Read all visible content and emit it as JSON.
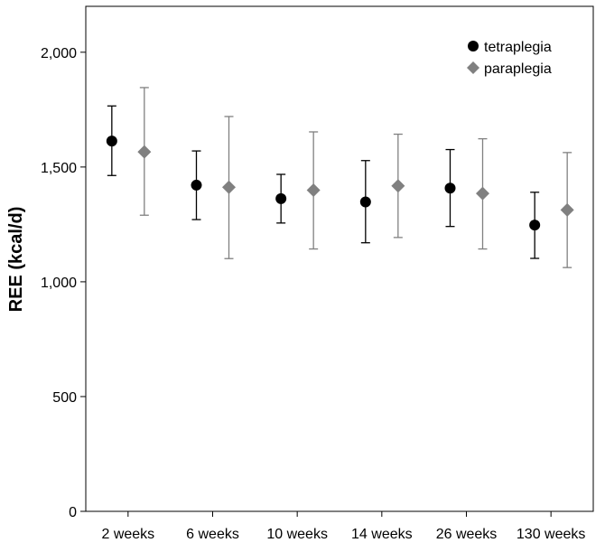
{
  "chart_data": {
    "type": "scatter",
    "subtype": "error-bar",
    "title": "",
    "xlabel": "",
    "ylabel": "REE (kcal/d)",
    "categories": [
      "2 weeks",
      "6 weeks",
      "10 weeks",
      "14 weeks",
      "26 weeks",
      "130 weeks"
    ],
    "ylim": [
      0,
      2200
    ],
    "yticks": [
      0,
      500,
      1000,
      1500,
      2000
    ],
    "ytick_labels": [
      "0",
      "500",
      "1,000",
      "1,500",
      "2,000"
    ],
    "grid": false,
    "legend": {
      "position": "top-right"
    },
    "series": [
      {
        "name": "tetraplegia",
        "marker": "circle",
        "color": "#000000",
        "values": [
          1613,
          1421,
          1362,
          1348,
          1408,
          1247
        ],
        "lower": [
          1463,
          1271,
          1256,
          1170,
          1241,
          1102
        ],
        "upper": [
          1766,
          1570,
          1468,
          1528,
          1576,
          1390
        ]
      },
      {
        "name": "paraplegia",
        "marker": "diamond",
        "color": "#808080",
        "values": [
          1566,
          1412,
          1399,
          1418,
          1385,
          1313
        ],
        "lower": [
          1290,
          1101,
          1143,
          1193,
          1143,
          1062
        ],
        "upper": [
          1846,
          1720,
          1653,
          1643,
          1623,
          1563
        ]
      }
    ]
  }
}
